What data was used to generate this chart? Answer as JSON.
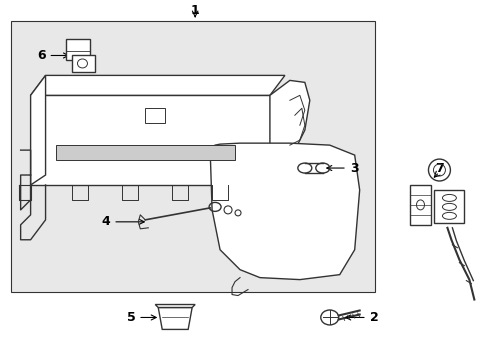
{
  "bg_color": "#ffffff",
  "box_bg": "#e8e8e8",
  "line_color": "#333333",
  "fig_width": 4.89,
  "fig_height": 3.6,
  "dpi": 100,
  "text_fontsize": 8,
  "lw": 1.0
}
